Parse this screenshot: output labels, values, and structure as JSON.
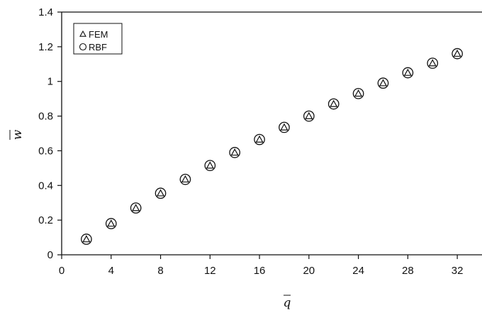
{
  "chart_data": {
    "type": "scatter",
    "xlabel": "q",
    "ylabel": "w",
    "xlim": [
      0,
      34
    ],
    "ylim": [
      0,
      1.4
    ],
    "xticks": [
      "0",
      "4",
      "8",
      "12",
      "16",
      "20",
      "24",
      "28",
      "32"
    ],
    "yticks": [
      "0",
      "0.2",
      "0.4",
      "0.6",
      "0.8",
      "1",
      "1.2",
      "1.4"
    ],
    "grid": false,
    "legend_position": "top-left",
    "legend": {
      "fem": "FEM",
      "rbf": "RBF"
    },
    "series": [
      {
        "name": "FEM",
        "marker": "triangle",
        "x": [
          2,
          4,
          6,
          8,
          10,
          12,
          14,
          16,
          18,
          20,
          22,
          24,
          26,
          28,
          30,
          32
        ],
        "y": [
          0.09,
          0.18,
          0.27,
          0.355,
          0.435,
          0.515,
          0.59,
          0.665,
          0.735,
          0.8,
          0.87,
          0.93,
          0.99,
          1.05,
          1.105,
          1.16
        ]
      },
      {
        "name": "RBF",
        "marker": "circle",
        "x": [
          2,
          4,
          6,
          8,
          10,
          12,
          14,
          16,
          18,
          20,
          22,
          24,
          26,
          28,
          30,
          32
        ],
        "y": [
          0.09,
          0.18,
          0.27,
          0.355,
          0.435,
          0.515,
          0.59,
          0.665,
          0.735,
          0.8,
          0.87,
          0.93,
          0.99,
          1.05,
          1.105,
          1.16
        ]
      }
    ]
  }
}
